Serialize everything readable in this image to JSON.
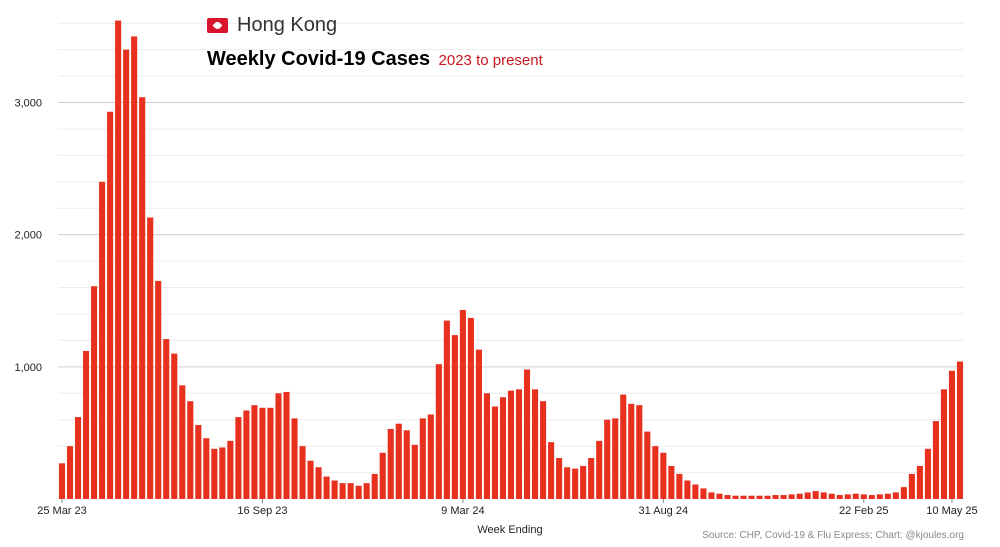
{
  "header": {
    "region": "Hong Kong",
    "title": "Weekly Covid-19 Cases",
    "subtitle": "2023 to present"
  },
  "source": "Source: CHP, Covid-19 & Flu Express; Chart: @kjoules.org",
  "colors": {
    "bar": "#e8301f",
    "grid": "#dcdcdc",
    "flag": "#d8152b"
  },
  "chart_data": {
    "type": "bar",
    "xlabel": "Week Ending",
    "ylabel": "",
    "ylim": [
      0,
      3700
    ],
    "yticks": [
      {
        "value": 1000,
        "label": "1,000"
      },
      {
        "value": 2000,
        "label": "2,000"
      },
      {
        "value": 3000,
        "label": "3,000"
      }
    ],
    "xticks": [
      {
        "index": 0,
        "label": "25 Mar 23"
      },
      {
        "index": 25,
        "label": "16 Sep 23"
      },
      {
        "index": 50,
        "label": "9 Mar 24"
      },
      {
        "index": 75,
        "label": "31 Aug 24"
      },
      {
        "index": 100,
        "label": "22 Feb 25"
      },
      {
        "index": 111,
        "label": "10 May 25"
      }
    ],
    "grid": true,
    "values": [
      270,
      400,
      620,
      1120,
      1610,
      2400,
      2930,
      3620,
      3400,
      3500,
      3040,
      2130,
      1650,
      1210,
      1100,
      860,
      740,
      560,
      460,
      380,
      390,
      440,
      620,
      670,
      710,
      690,
      690,
      800,
      810,
      610,
      400,
      290,
      240,
      170,
      140,
      120,
      120,
      100,
      120,
      190,
      350,
      530,
      570,
      520,
      410,
      610,
      640,
      1020,
      1350,
      1240,
      1430,
      1370,
      1130,
      800,
      700,
      770,
      820,
      830,
      980,
      830,
      740,
      430,
      310,
      240,
      230,
      250,
      310,
      440,
      600,
      610,
      790,
      720,
      710,
      510,
      400,
      350,
      250,
      190,
      140,
      110,
      80,
      50,
      40,
      30,
      25,
      25,
      25,
      25,
      25,
      30,
      30,
      35,
      40,
      50,
      60,
      50,
      40,
      30,
      35,
      40,
      35,
      30,
      35,
      40,
      50,
      90,
      190,
      250,
      380,
      590,
      830,
      970,
      1040
    ]
  }
}
